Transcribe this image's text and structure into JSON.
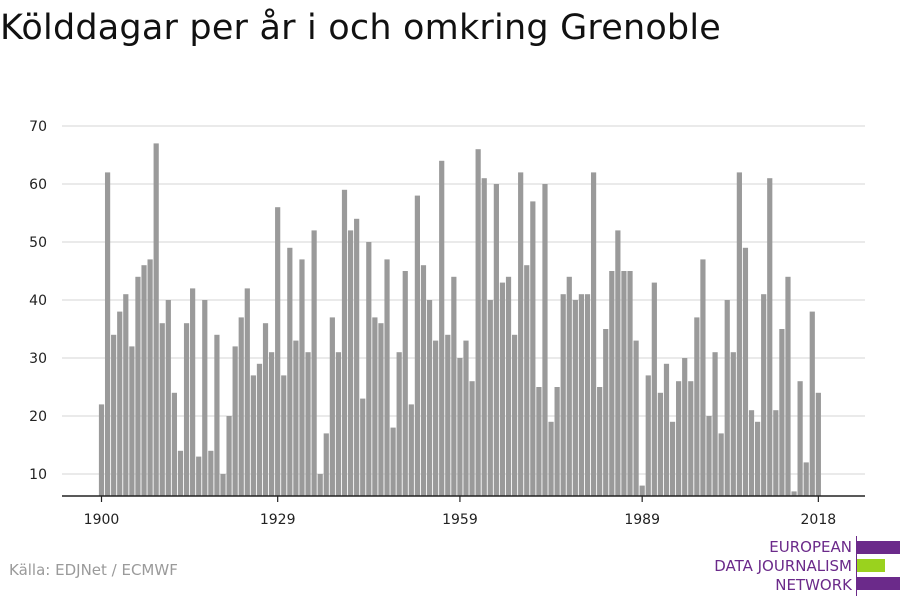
{
  "title": "Kölddagar per år i och omkring Grenoble",
  "source": "Källa: EDJNet / ECMWF",
  "logo": {
    "lines": [
      "EUROPEAN",
      "DATA JOURNALISM",
      "NETWORK"
    ],
    "colors": {
      "purple": "#6b2a8a",
      "green": "#9ad21e"
    }
  },
  "colors": {
    "bar": "#9a9a9a",
    "grid": "#dddddd",
    "axis": "#222222"
  },
  "chart_data": {
    "type": "bar",
    "title": "Kölddagar per år i och omkring Grenoble",
    "xlabel": "",
    "ylabel": "",
    "x_start": 1900,
    "x_end": 2018,
    "x_ticks": [
      1900,
      1929,
      1959,
      1989,
      2018
    ],
    "y_ticks": [
      10,
      20,
      30,
      40,
      50,
      60,
      70
    ],
    "ylim": [
      6,
      72
    ],
    "grid": true,
    "values": [
      22,
      62,
      34,
      38,
      41,
      32,
      44,
      46,
      47,
      67,
      36,
      40,
      24,
      14,
      36,
      42,
      13,
      40,
      14,
      34,
      10,
      20,
      32,
      37,
      42,
      27,
      29,
      36,
      31,
      56,
      27,
      49,
      33,
      47,
      31,
      52,
      10,
      17,
      37,
      31,
      59,
      52,
      54,
      23,
      50,
      37,
      36,
      47,
      18,
      31,
      45,
      22,
      58,
      46,
      40,
      33,
      64,
      34,
      44,
      30,
      33,
      26,
      66,
      61,
      40,
      60,
      43,
      44,
      34,
      62,
      46,
      57,
      25,
      60,
      19,
      25,
      41,
      44,
      40,
      41,
      41,
      62,
      25,
      35,
      45,
      52,
      45,
      45,
      33,
      8,
      27,
      43,
      24,
      29,
      19,
      26,
      30,
      26,
      37,
      47,
      20,
      31,
      17,
      40,
      31,
      62,
      49,
      21,
      19,
      41,
      61,
      21,
      35,
      44,
      7,
      26,
      12,
      38,
      24
    ]
  }
}
